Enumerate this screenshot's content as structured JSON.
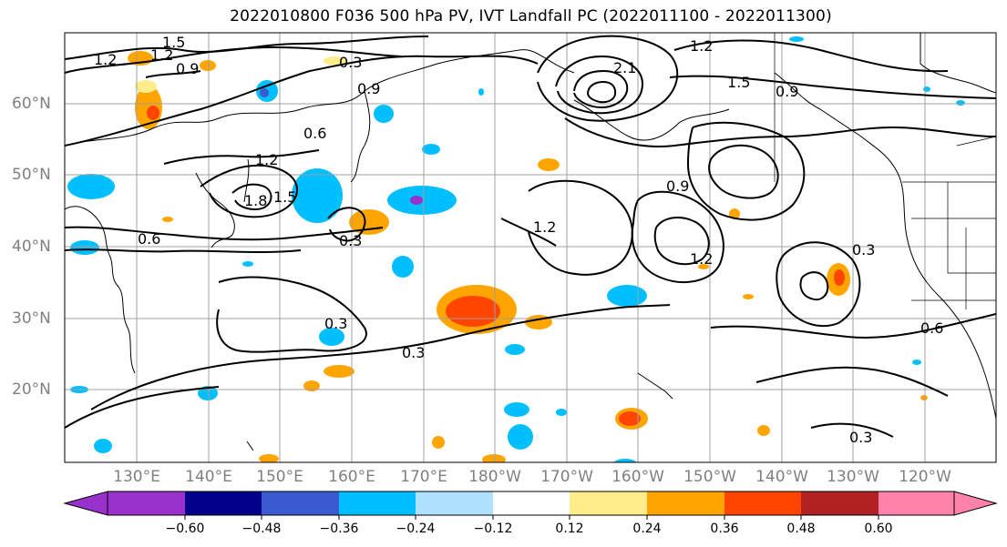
{
  "title": "2022010800 F036 500 hPa PV, IVT Landfall PC (2022011100 - 2022011300)",
  "lat_labels": [
    "60°N",
    "50°N",
    "40°N",
    "30°N",
    "20°N"
  ],
  "lon_labels": [
    "130°E",
    "140°E",
    "150°E",
    "160°E",
    "170°E",
    "180°W",
    "170°W",
    "160°W",
    "150°W",
    "140°W",
    "130°W",
    "120°W"
  ],
  "contour_labels": [
    "1.2",
    "1.5",
    "1.2",
    "0.9",
    "0.3",
    "0.9",
    "1.2",
    "1.5",
    "0.9",
    "2.1",
    "0.6",
    "1.2",
    "1.8",
    "1.5",
    "0.9",
    "1.2",
    "0.6",
    "0.3",
    "0.3",
    "0.3",
    "1.2",
    "0.3",
    "0.6",
    "0.3"
  ],
  "colorbar": {
    "ticks": [
      "−0.60",
      "−0.48",
      "−0.36",
      "−0.24",
      "−0.12",
      "0.12",
      "0.24",
      "0.36",
      "0.48",
      "0.60"
    ],
    "colors": [
      "#9932cc",
      "#00008b",
      "#3a5bcf",
      "#00bfff",
      "#b0e2ff",
      "#ffffff",
      "#ffec8b",
      "#ffa500",
      "#ff4500",
      "#b22222",
      "#ff82ab"
    ]
  }
}
